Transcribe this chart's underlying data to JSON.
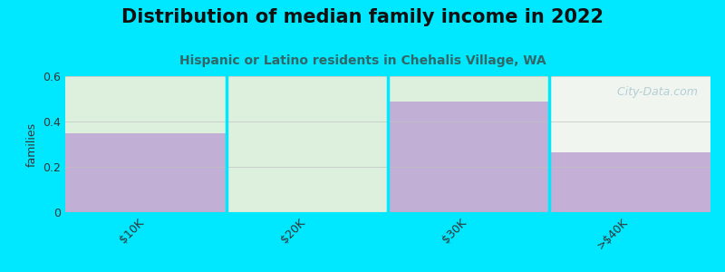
{
  "title": "Distribution of median family income in 2022",
  "subtitle": "Hispanic or Latino residents in Chehalis Village, WA",
  "categories": [
    "$10K",
    "$20K",
    "$30K",
    ">$40K"
  ],
  "values": [
    0.35,
    0.0,
    0.49,
    0.265
  ],
  "bar_color": "#c0a8d5",
  "bar_bg_colors": [
    "#ddf0dd",
    "#ddf0dd",
    "#ddf0dd",
    "#f0f5f0"
  ],
  "background_color": "#00e8ff",
  "ylabel": "families",
  "ylim": [
    0,
    0.6
  ],
  "yticks": [
    0,
    0.2,
    0.4,
    0.6
  ],
  "title_fontsize": 15,
  "subtitle_fontsize": 10,
  "title_color": "#111111",
  "subtitle_color": "#336666",
  "watermark": "   City-Data.com",
  "watermark_color": "#aac8d0"
}
